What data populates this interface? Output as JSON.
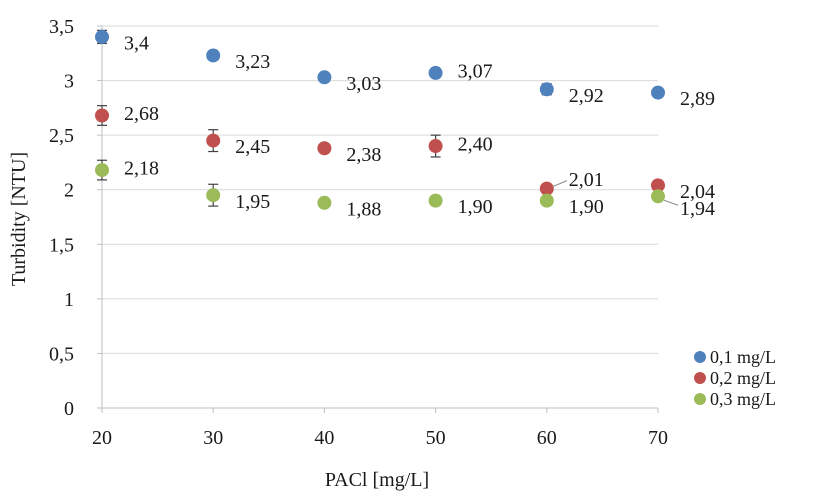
{
  "chart_data": {
    "type": "scatter",
    "xlabel": "PACl [mg/L]",
    "ylabel": "Turbidity [NTU]",
    "xlim": [
      20,
      70
    ],
    "ylim": [
      0,
      3.5
    ],
    "x_ticks": [
      "20",
      "30",
      "40",
      "50",
      "60",
      "70"
    ],
    "y_ticks": [
      "0",
      "0,5",
      "1",
      "1,5",
      "2",
      "2,5",
      "3",
      "3,5"
    ],
    "grid": "horizontal",
    "legend_position": "right",
    "series": [
      {
        "name": "0,1 mg/L",
        "color": "#4f81bd",
        "x": [
          20,
          30,
          40,
          50,
          60,
          70
        ],
        "y": [
          3.4,
          3.23,
          3.03,
          3.07,
          2.92,
          2.89
        ],
        "labels": [
          "3,4",
          "3,23",
          "3,03",
          "3,07",
          "2,92",
          "2,89"
        ],
        "error": [
          0.06,
          0.04,
          0.0,
          0.0,
          0.05,
          0.0
        ]
      },
      {
        "name": "0,2 mg/L",
        "color": "#c0504d",
        "x": [
          20,
          30,
          40,
          50,
          60,
          70
        ],
        "y": [
          2.68,
          2.45,
          2.38,
          2.4,
          2.01,
          2.04
        ],
        "labels": [
          "2,68",
          "2,45",
          "2,38",
          "2,40",
          "2,01",
          "2,04"
        ],
        "error": [
          0.09,
          0.1,
          0.0,
          0.1,
          0.0,
          0.0
        ]
      },
      {
        "name": "0,3 mg/L",
        "color": "#9bbb59",
        "x": [
          20,
          30,
          40,
          50,
          60,
          70
        ],
        "y": [
          2.18,
          1.95,
          1.88,
          1.9,
          1.9,
          1.94
        ],
        "labels": [
          "2,18",
          "1,95",
          "1,88",
          "1,90",
          "1,90",
          "1,94"
        ],
        "error": [
          0.09,
          0.1,
          0.0,
          0.0,
          0.0,
          0.0
        ]
      }
    ]
  }
}
